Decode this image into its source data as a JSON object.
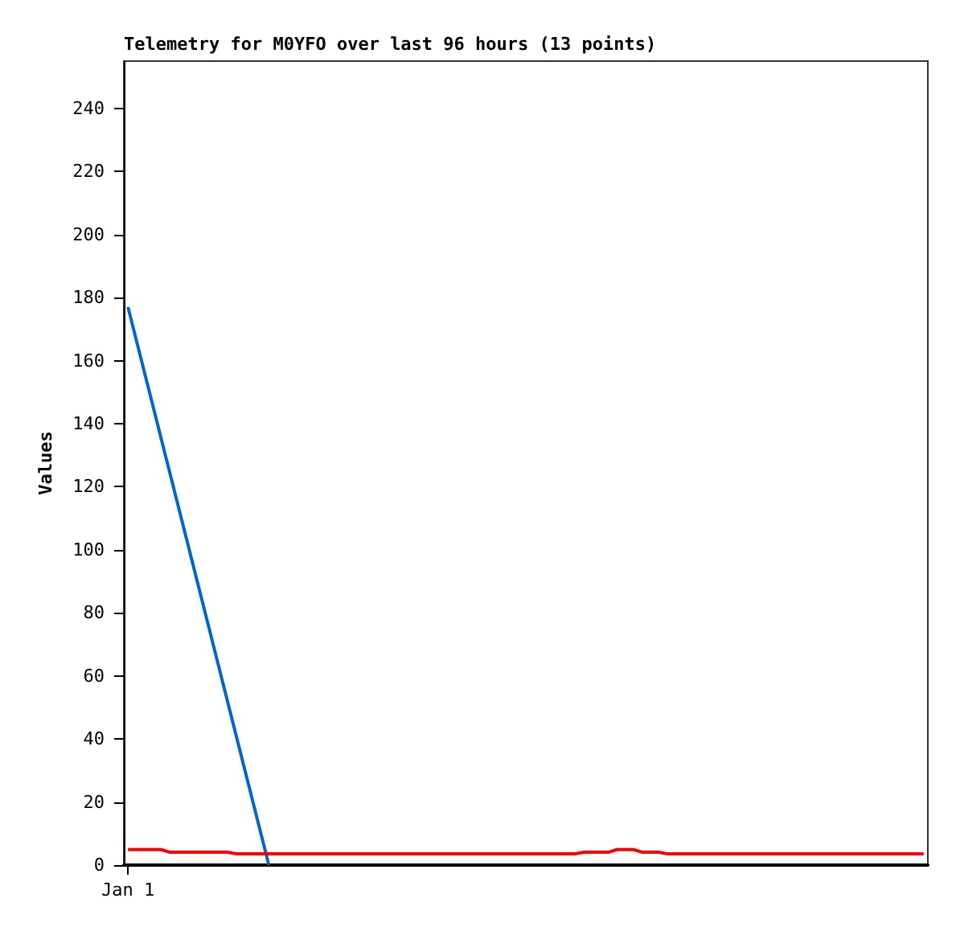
{
  "chart_data": {
    "type": "line",
    "title": "Telemetry for M0YFO over last 96 hours (13 points)",
    "ylabel": "Values",
    "categories": [
      "Jan 1",
      null,
      null,
      null,
      null,
      null,
      null,
      null,
      null,
      null,
      null,
      null,
      null,
      null,
      null,
      null,
      null,
      null,
      null,
      null,
      null,
      null,
      null,
      null,
      null,
      null,
      null,
      null,
      null,
      null,
      null,
      null,
      null,
      null,
      null,
      null,
      null,
      null,
      null,
      null,
      null,
      null,
      null,
      null,
      null,
      null,
      null,
      null,
      null,
      null,
      null,
      null,
      null,
      null,
      null,
      null,
      null,
      null,
      null,
      null,
      null,
      null,
      null,
      null,
      null,
      null,
      null,
      null,
      null,
      null,
      null,
      null,
      null,
      null,
      null,
      null,
      null,
      null,
      null,
      null,
      null,
      null,
      null,
      null,
      null,
      null,
      null,
      null,
      null,
      null,
      null,
      null,
      null,
      null,
      null,
      null,
      null
    ],
    "ylim": [
      0,
      255
    ],
    "yticks": [
      0,
      20,
      40,
      60,
      80,
      100,
      120,
      140,
      160,
      180,
      200,
      220,
      240
    ],
    "grid": false,
    "marker": "none",
    "line_style": "solid",
    "series": [
      {
        "color": "#0066cc",
        "values": [
          177,
          null,
          null,
          null,
          null,
          null,
          null,
          null,
          null,
          null,
          null,
          null,
          null,
          null,
          null,
          null,
          null,
          0,
          null,
          null,
          null,
          null,
          null,
          null,
          null,
          null,
          null,
          null,
          null,
          null,
          null,
          null,
          null,
          null,
          null,
          null,
          null,
          null,
          null,
          null,
          null,
          null,
          null,
          null,
          null,
          null,
          null,
          null,
          null,
          null,
          null,
          null,
          null,
          null,
          null,
          null,
          null,
          null,
          null,
          null,
          null,
          null,
          null,
          null,
          null,
          null,
          null,
          null,
          null,
          null,
          null,
          null,
          null,
          null,
          null,
          null,
          null,
          null,
          null,
          null,
          null,
          null,
          null,
          null,
          null,
          null,
          null,
          null,
          null,
          null,
          null,
          null,
          null,
          null,
          null,
          null,
          null
        ]
      },
      {
        "color": "#ff0000",
        "values": [
          4.9,
          null,
          null,
          null,
          4.9,
          4.1,
          null,
          null,
          null,
          null,
          null,
          null,
          4.1,
          3.6,
          null,
          null,
          null,
          null,
          null,
          null,
          null,
          null,
          null,
          null,
          null,
          null,
          null,
          null,
          null,
          null,
          null,
          null,
          null,
          null,
          null,
          null,
          null,
          null,
          null,
          null,
          null,
          null,
          null,
          null,
          null,
          null,
          null,
          null,
          null,
          null,
          null,
          null,
          null,
          null,
          3.6,
          4.1,
          null,
          null,
          4.1,
          4.9,
          null,
          4.9,
          4.1,
          null,
          4.1,
          3.6,
          null,
          null,
          null,
          null,
          null,
          null,
          null,
          null,
          null,
          null,
          null,
          null,
          null,
          null,
          null,
          null,
          null,
          null,
          null,
          null,
          null,
          null,
          null,
          null,
          null,
          null,
          null,
          null,
          null,
          null,
          3.6
        ]
      }
    ]
  }
}
